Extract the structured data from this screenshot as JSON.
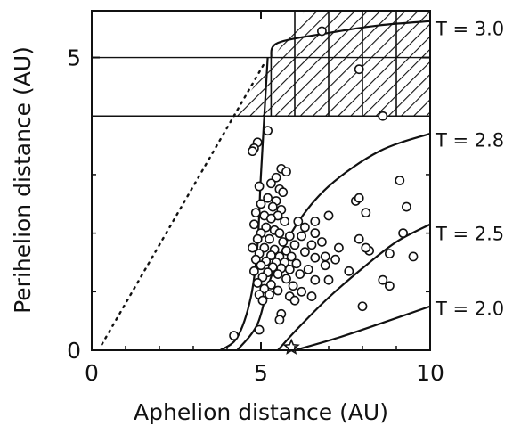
{
  "chart_data": {
    "type": "scatter",
    "title": "",
    "xlabel": "Aphelion distance (AU)",
    "ylabel": "Perihelion distance (AU)",
    "xlim": [
      0,
      10
    ],
    "ylim": [
      0,
      5.8
    ],
    "x_ticks": [
      {
        "value": 0,
        "label": "0"
      },
      {
        "value": 5,
        "label": "5"
      },
      {
        "value": 10,
        "label": "10"
      }
    ],
    "y_ticks": [
      {
        "value": 0,
        "label": "0"
      },
      {
        "value": 5,
        "label": "5"
      }
    ],
    "grid": false,
    "legend": "none",
    "reference_lines": [
      {
        "type": "diagonal",
        "note": "q = Q",
        "style": "dotted",
        "points": [
          [
            0.3,
            0.1
          ],
          [
            5.1,
            4.9
          ]
        ]
      },
      {
        "type": "horizontal",
        "y": 4.0,
        "style": "solid"
      },
      {
        "type": "horizontal",
        "y": 5.0,
        "style": "solid"
      }
    ],
    "curves": [
      {
        "label": "T = 3.0",
        "points": [
          [
            5.3,
            5.0
          ],
          [
            5.5,
            5.25
          ],
          [
            7.0,
            5.42
          ],
          [
            8.5,
            5.55
          ],
          [
            10.0,
            5.62
          ]
        ]
      },
      {
        "label": "T = 2.8",
        "points": [
          [
            3.8,
            0.0
          ],
          [
            4.3,
            0.22
          ],
          [
            4.7,
            0.9
          ],
          [
            4.9,
            1.8
          ],
          [
            5.0,
            3.0
          ],
          [
            5.2,
            5.0
          ]
        ]
      },
      {
        "label": "T = 2.8",
        "points": [
          [
            4.3,
            0.0
          ],
          [
            4.9,
            0.45
          ],
          [
            5.3,
            1.25
          ],
          [
            6.0,
            2.1
          ],
          [
            7.0,
            2.8
          ],
          [
            8.5,
            3.4
          ],
          [
            10.0,
            3.7
          ]
        ]
      },
      {
        "label": "T = 2.5",
        "points": [
          [
            5.5,
            0.0
          ],
          [
            6.1,
            0.38
          ],
          [
            7.0,
            0.9
          ],
          [
            8.0,
            1.4
          ],
          [
            9.0,
            1.85
          ],
          [
            10.0,
            2.15
          ]
        ]
      },
      {
        "label": "T = 2.0",
        "points": [
          [
            6.0,
            0.0
          ],
          [
            7.2,
            0.2
          ],
          [
            8.5,
            0.45
          ],
          [
            10.0,
            0.75
          ]
        ]
      }
    ],
    "curve_labels": [
      {
        "text": "T = 3.0",
        "y": 5.5
      },
      {
        "text": "T = 2.8",
        "y": 3.6
      },
      {
        "text": "T = 2.5",
        "y": 2.0
      },
      {
        "text": "T = 2.0",
        "y": 0.72
      }
    ],
    "points": [
      {
        "x": 6.8,
        "y": 5.45
      },
      {
        "x": 8.6,
        "y": 4.0
      },
      {
        "x": 7.9,
        "y": 4.8
      },
      {
        "x": 5.2,
        "y": 3.75
      },
      {
        "x": 4.9,
        "y": 3.55
      },
      {
        "x": 4.8,
        "y": 3.45
      },
      {
        "x": 4.75,
        "y": 3.4
      },
      {
        "x": 5.6,
        "y": 3.1
      },
      {
        "x": 5.75,
        "y": 3.05
      },
      {
        "x": 5.45,
        "y": 2.95
      },
      {
        "x": 5.3,
        "y": 2.85
      },
      {
        "x": 4.95,
        "y": 2.8
      },
      {
        "x": 5.55,
        "y": 2.75
      },
      {
        "x": 5.65,
        "y": 2.7
      },
      {
        "x": 5.2,
        "y": 2.6
      },
      {
        "x": 5.45,
        "y": 2.55
      },
      {
        "x": 5.0,
        "y": 2.5
      },
      {
        "x": 5.35,
        "y": 2.45
      },
      {
        "x": 5.6,
        "y": 2.4
      },
      {
        "x": 4.85,
        "y": 2.35
      },
      {
        "x": 5.1,
        "y": 2.3
      },
      {
        "x": 5.5,
        "y": 2.3
      },
      {
        "x": 5.3,
        "y": 2.25
      },
      {
        "x": 5.7,
        "y": 2.2
      },
      {
        "x": 6.1,
        "y": 2.2
      },
      {
        "x": 4.8,
        "y": 2.15
      },
      {
        "x": 5.15,
        "y": 2.1
      },
      {
        "x": 5.4,
        "y": 2.05
      },
      {
        "x": 5.0,
        "y": 2.0
      },
      {
        "x": 5.55,
        "y": 2.0
      },
      {
        "x": 5.85,
        "y": 1.95
      },
      {
        "x": 6.2,
        "y": 1.95
      },
      {
        "x": 4.9,
        "y": 1.9
      },
      {
        "x": 5.25,
        "y": 1.9
      },
      {
        "x": 5.65,
        "y": 1.85
      },
      {
        "x": 6.0,
        "y": 1.8
      },
      {
        "x": 6.5,
        "y": 1.8
      },
      {
        "x": 4.75,
        "y": 1.75
      },
      {
        "x": 5.1,
        "y": 1.75
      },
      {
        "x": 5.4,
        "y": 1.72
      },
      {
        "x": 5.75,
        "y": 1.7
      },
      {
        "x": 6.3,
        "y": 1.68
      },
      {
        "x": 4.95,
        "y": 1.65
      },
      {
        "x": 5.3,
        "y": 1.62
      },
      {
        "x": 5.55,
        "y": 1.6
      },
      {
        "x": 5.9,
        "y": 1.6
      },
      {
        "x": 6.6,
        "y": 1.58
      },
      {
        "x": 7.2,
        "y": 1.55
      },
      {
        "x": 4.85,
        "y": 1.55
      },
      {
        "x": 5.15,
        "y": 1.52
      },
      {
        "x": 5.45,
        "y": 1.5
      },
      {
        "x": 5.7,
        "y": 1.5
      },
      {
        "x": 6.05,
        "y": 1.48
      },
      {
        "x": 6.9,
        "y": 1.45
      },
      {
        "x": 5.0,
        "y": 1.45
      },
      {
        "x": 5.35,
        "y": 1.42
      },
      {
        "x": 5.6,
        "y": 1.4
      },
      {
        "x": 5.85,
        "y": 1.38
      },
      {
        "x": 6.4,
        "y": 1.38
      },
      {
        "x": 4.8,
        "y": 1.35
      },
      {
        "x": 5.2,
        "y": 1.33
      },
      {
        "x": 5.5,
        "y": 1.3
      },
      {
        "x": 6.15,
        "y": 1.3
      },
      {
        "x": 5.05,
        "y": 1.25
      },
      {
        "x": 5.75,
        "y": 1.22
      },
      {
        "x": 6.6,
        "y": 1.2
      },
      {
        "x": 7.0,
        "y": 1.2
      },
      {
        "x": 4.9,
        "y": 1.15
      },
      {
        "x": 5.3,
        "y": 1.12
      },
      {
        "x": 5.95,
        "y": 1.1
      },
      {
        "x": 5.1,
        "y": 1.05
      },
      {
        "x": 5.5,
        "y": 1.02
      },
      {
        "x": 6.2,
        "y": 1.0
      },
      {
        "x": 4.95,
        "y": 0.95
      },
      {
        "x": 5.25,
        "y": 0.95
      },
      {
        "x": 5.85,
        "y": 0.92
      },
      {
        "x": 6.5,
        "y": 0.92
      },
      {
        "x": 5.05,
        "y": 0.85
      },
      {
        "x": 6.0,
        "y": 0.85
      },
      {
        "x": 5.6,
        "y": 0.62
      },
      {
        "x": 5.55,
        "y": 0.52
      },
      {
        "x": 4.95,
        "y": 0.35
      },
      {
        "x": 4.2,
        "y": 0.25
      },
      {
        "x": 6.3,
        "y": 2.1
      },
      {
        "x": 6.6,
        "y": 2.0
      },
      {
        "x": 6.8,
        "y": 1.85
      },
      {
        "x": 7.3,
        "y": 1.75
      },
      {
        "x": 6.9,
        "y": 1.6
      },
      {
        "x": 6.6,
        "y": 2.2
      },
      {
        "x": 7.0,
        "y": 2.3
      },
      {
        "x": 7.8,
        "y": 2.55
      },
      {
        "x": 7.9,
        "y": 2.6
      },
      {
        "x": 8.1,
        "y": 2.35
      },
      {
        "x": 7.9,
        "y": 1.9
      },
      {
        "x": 8.2,
        "y": 1.7
      },
      {
        "x": 8.1,
        "y": 1.75
      },
      {
        "x": 8.8,
        "y": 1.65
      },
      {
        "x": 9.2,
        "y": 2.0
      },
      {
        "x": 9.3,
        "y": 2.45
      },
      {
        "x": 9.1,
        "y": 2.9
      },
      {
        "x": 9.5,
        "y": 1.6
      },
      {
        "x": 7.6,
        "y": 1.35
      },
      {
        "x": 8.6,
        "y": 1.2
      },
      {
        "x": 8.8,
        "y": 1.1
      },
      {
        "x": 8.0,
        "y": 0.75
      }
    ],
    "star_marker": {
      "x": 5.9,
      "y": 0.05
    }
  }
}
